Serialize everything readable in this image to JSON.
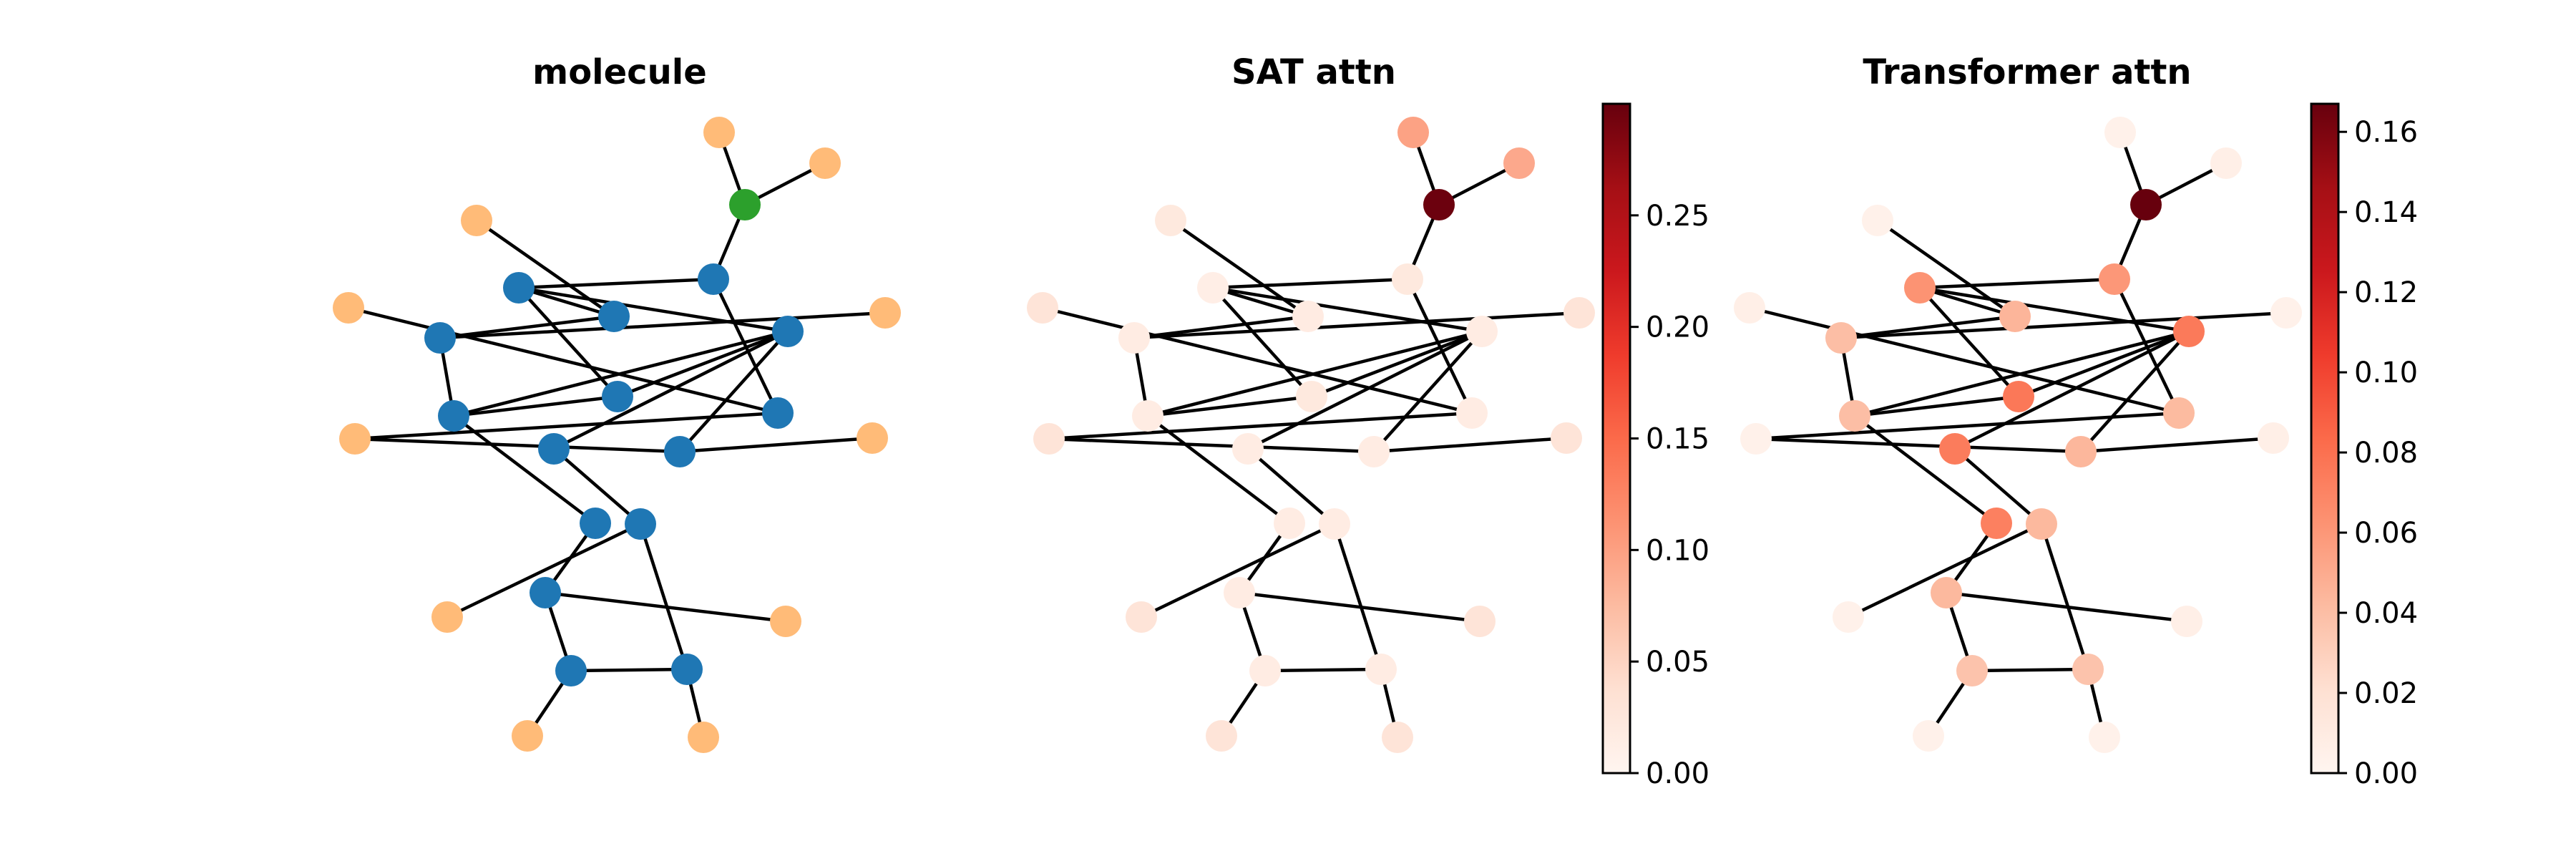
{
  "panels": [
    {
      "title": "molecule"
    },
    {
      "title": "SAT attn"
    },
    {
      "title": "Transformer attn"
    }
  ],
  "colors": {
    "carbon": "#1f77b4",
    "hydrogen": "#ffbb78",
    "heteroatom": "#2ca02c",
    "edge": "#000000",
    "colormap": "Reds"
  },
  "colorbars": [
    {
      "panel": "SAT attn",
      "min": 0.0,
      "max": 0.3,
      "ticks": [
        "0.00",
        "0.05",
        "0.10",
        "0.15",
        "0.20",
        "0.25"
      ],
      "tick_values": [
        0.0,
        0.05,
        0.1,
        0.15,
        0.2,
        0.25
      ]
    },
    {
      "panel": "Transformer attn",
      "min": 0.0,
      "max": 0.167,
      "ticks": [
        "0.00",
        "0.02",
        "0.04",
        "0.06",
        "0.08",
        "0.10",
        "0.12",
        "0.14",
        "0.16"
      ],
      "tick_values": [
        0.0,
        0.02,
        0.04,
        0.06,
        0.08,
        0.1,
        0.12,
        0.14,
        0.16
      ]
    }
  ],
  "graph": {
    "nodes": [
      {
        "id": 0,
        "type": "H"
      },
      {
        "id": 1,
        "type": "H"
      },
      {
        "id": 2,
        "type": "X"
      },
      {
        "id": 3,
        "type": "H"
      },
      {
        "id": 4,
        "type": "C"
      },
      {
        "id": 5,
        "type": "C"
      },
      {
        "id": 6,
        "type": "C"
      },
      {
        "id": 7,
        "type": "H"
      },
      {
        "id": 8,
        "type": "C"
      },
      {
        "id": 9,
        "type": "C"
      },
      {
        "id": 10,
        "type": "H"
      },
      {
        "id": 11,
        "type": "C"
      },
      {
        "id": 12,
        "type": "C"
      },
      {
        "id": 13,
        "type": "H"
      },
      {
        "id": 14,
        "type": "C"
      },
      {
        "id": 15,
        "type": "C"
      },
      {
        "id": 16,
        "type": "H"
      },
      {
        "id": 17,
        "type": "C"
      },
      {
        "id": 18,
        "type": "C"
      },
      {
        "id": 19,
        "type": "C"
      },
      {
        "id": 20,
        "type": "H"
      },
      {
        "id": 21,
        "type": "C"
      },
      {
        "id": 22,
        "type": "H"
      },
      {
        "id": 23,
        "type": "C"
      },
      {
        "id": 24,
        "type": "C"
      },
      {
        "id": 25,
        "type": "H"
      },
      {
        "id": 26,
        "type": "H"
      }
    ],
    "edges": [
      [
        0,
        2
      ],
      [
        1,
        2
      ],
      [
        2,
        6
      ],
      [
        3,
        5
      ],
      [
        5,
        4
      ],
      [
        4,
        9
      ],
      [
        5,
        8
      ],
      [
        4,
        11
      ],
      [
        6,
        4
      ],
      [
        6,
        12
      ],
      [
        7,
        12
      ],
      [
        8,
        10
      ],
      [
        8,
        14
      ],
      [
        9,
        11
      ],
      [
        11,
        14
      ],
      [
        12,
        13
      ],
      [
        13,
        15
      ],
      [
        14,
        9
      ],
      [
        15,
        16
      ],
      [
        15,
        11
      ],
      [
        14,
        18
      ],
      [
        11,
        17
      ],
      [
        17,
        19
      ],
      [
        18,
        21
      ],
      [
        19,
        20
      ],
      [
        21,
        22
      ],
      [
        19,
        23
      ],
      [
        21,
        24
      ],
      [
        23,
        24
      ],
      [
        23,
        25
      ],
      [
        24,
        26
      ]
    ]
  },
  "attention": {
    "sat": [
      0.098,
      0.092,
      0.297,
      0.022,
      0.012,
      0.018,
      0.022,
      0.03,
      0.016,
      0.022,
      0.03,
      0.016,
      0.016,
      0.03,
      0.016,
      0.016,
      0.03,
      0.016,
      0.016,
      0.016,
      0.03,
      0.016,
      0.03,
      0.016,
      0.016,
      0.03,
      0.03
    ],
    "transformer": [
      0.004,
      0.006,
      0.167,
      0.004,
      0.062,
      0.045,
      0.06,
      0.006,
      0.04,
      0.076,
      0.004,
      0.075,
      0.042,
      0.004,
      0.04,
      0.044,
      0.006,
      0.074,
      0.072,
      0.043,
      0.004,
      0.043,
      0.006,
      0.037,
      0.037,
      0.004,
      0.004
    ]
  }
}
